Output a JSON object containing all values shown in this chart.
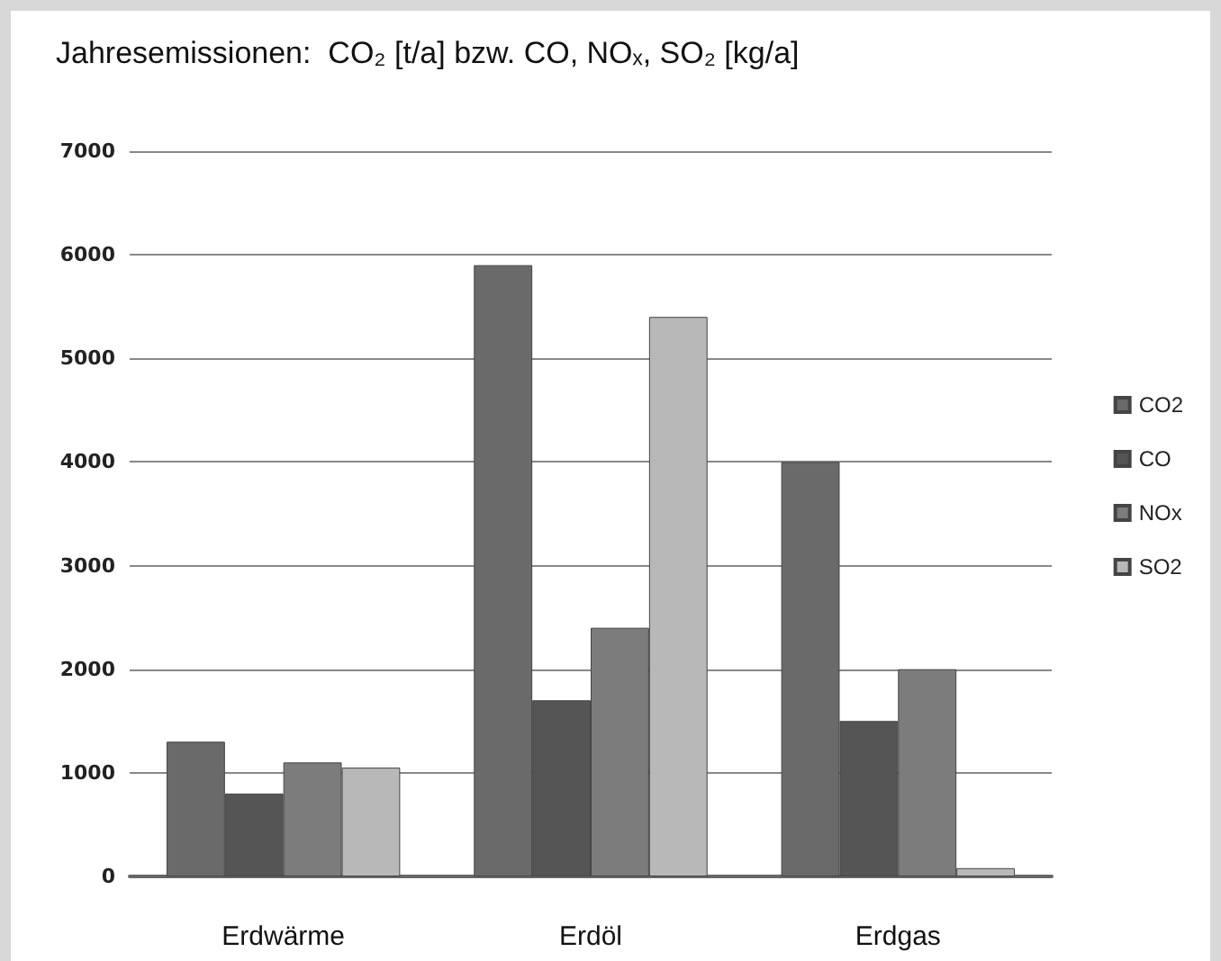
{
  "chart_data": {
    "type": "bar",
    "title": "Jahresemissionen:  CO₂ [t/a] bzw. CO, NOₓ, SO₂ [kg/a]",
    "categories": [
      "Erdwärme",
      "Erdöl",
      "Erdgas"
    ],
    "series": [
      {
        "name": "CO2",
        "color": "#6a6a6a",
        "values": [
          1300,
          5900,
          4000
        ]
      },
      {
        "name": "CO",
        "color": "#555555",
        "values": [
          800,
          1700,
          1500
        ]
      },
      {
        "name": "NOx",
        "color": "#7c7c7c",
        "values": [
          1100,
          2400,
          2000
        ]
      },
      {
        "name": "SO2",
        "color": "#b8b8b8",
        "values": [
          1050,
          5400,
          80
        ]
      }
    ],
    "ylim": [
      0,
      7000
    ],
    "yticks": [
      0,
      1000,
      2000,
      3000,
      4000,
      5000,
      6000,
      7000
    ],
    "grid": "y",
    "legend": "right"
  }
}
